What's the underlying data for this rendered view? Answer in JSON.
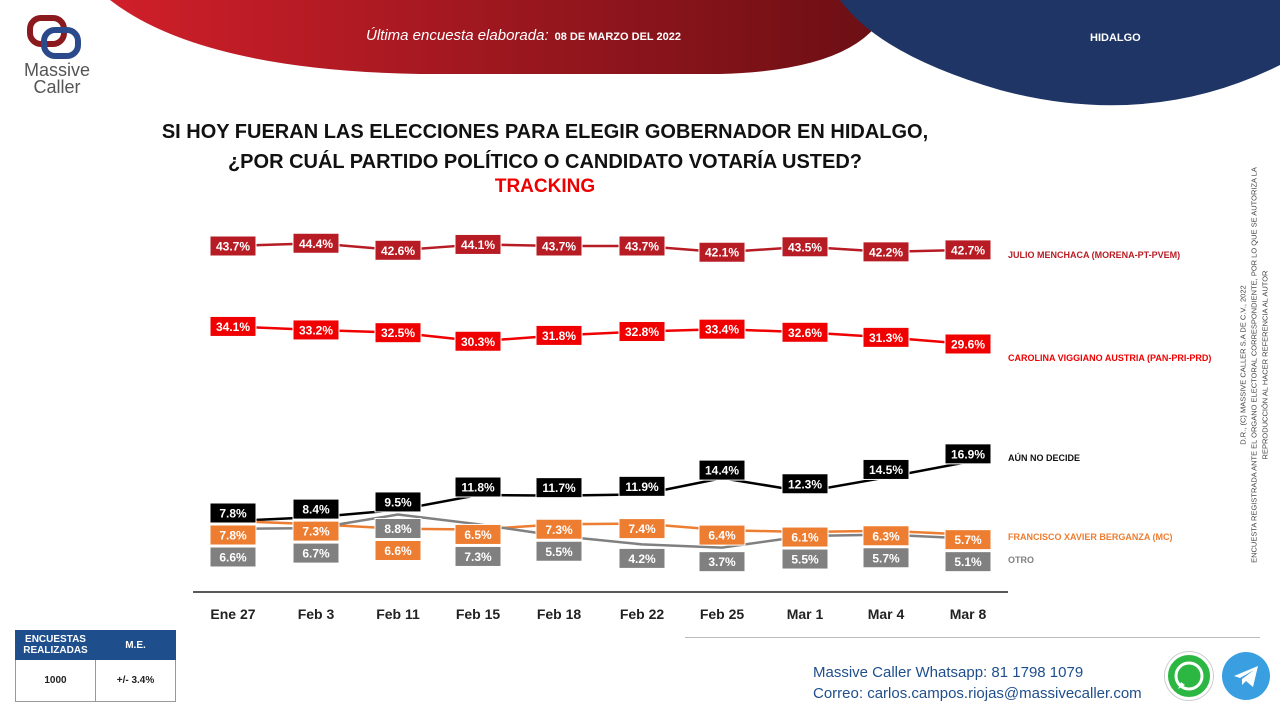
{
  "header": {
    "label": "Última encuesta elaborada:",
    "date": "08 DE MARZO DEL 2022",
    "state": "HIDALGO"
  },
  "logo": {
    "line1": "Massive",
    "line2": "Caller"
  },
  "title": {
    "line1": "SI HOY FUERAN LAS ELECCIONES PARA ELEGIR GOBERNADOR EN HIDALGO,",
    "line2": "¿POR CUÁL PARTIDO POLÍTICO O CANDIDATO VOTARÍA USTED?",
    "subtitle": "TRACKING"
  },
  "chart_data": {
    "type": "line",
    "categories": [
      "Ene 27",
      "Feb 3",
      "Feb 11",
      "Feb 15",
      "Feb 18",
      "Feb 22",
      "Feb 25",
      "Mar 1",
      "Mar 4",
      "Mar 8"
    ],
    "series": [
      {
        "name": "JULIO MENCHACA (MORENA-PT-PVEM)",
        "color": "#b71c25",
        "values": [
          43.7,
          44.4,
          42.6,
          44.1,
          43.7,
          43.7,
          42.1,
          43.5,
          42.2,
          42.7
        ]
      },
      {
        "name": "CAROLINA VIGGIANO AUSTRIA (PAN-PRI-PRD)",
        "color": "#f00000",
        "values": [
          34.1,
          33.2,
          32.5,
          30.3,
          31.8,
          32.8,
          33.4,
          32.6,
          31.3,
          29.6
        ]
      },
      {
        "name": "AÚN NO DECIDE",
        "color": "#000000",
        "values": [
          7.8,
          8.4,
          9.5,
          11.8,
          11.7,
          11.9,
          14.4,
          12.3,
          14.5,
          16.9
        ]
      },
      {
        "name": "FRANCISCO XAVIER BERGANZA (MC)",
        "color": "#ed7d31",
        "values": [
          7.8,
          7.3,
          6.6,
          6.5,
          7.3,
          7.4,
          6.4,
          6.1,
          6.3,
          5.7
        ]
      },
      {
        "name": "OTRO",
        "color": "#808080",
        "values": [
          6.6,
          6.7,
          8.8,
          7.3,
          5.5,
          4.2,
          3.7,
          5.5,
          5.7,
          5.1
        ]
      }
    ],
    "grid": false
  },
  "side_note": {
    "line1": "D.R., (C) MASSIVE CALLER S.A DE C.V., 2022",
    "line2": "ENCUESTA REGISTRADA ANTE EL ORGANO ELECTORAL CORRESPONDIENTE, POR LO QUE SE AUTORIZA LA",
    "line3": "REPRODUCCIÓN AL HACER REFERENCIA AL AUTOR"
  },
  "summary": {
    "h1": "ENCUESTAS REALIZADAS",
    "h2": "M.E.",
    "v1": "1000",
    "v2": "+/- 3.4%"
  },
  "contact": {
    "wa_label": "Massive Caller Whatsapp:",
    "wa_value": "81 1798 1079",
    "mail_label": "Correo:",
    "mail_value": "carlos.campos.riojas@massivecaller.com"
  }
}
